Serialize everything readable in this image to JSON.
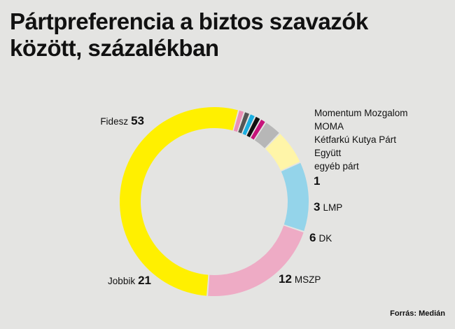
{
  "title": "Pártpreferencia a biztos szavazók között, százalékban",
  "source": "Forrás: Medián",
  "chart_data": {
    "type": "donut",
    "unit": "százalék",
    "segments": [
      {
        "name": "Fidesz",
        "value": 53,
        "color": "#fff000"
      },
      {
        "name": "Jobbik",
        "value": 21,
        "color": "#eeabc5"
      },
      {
        "name": "MSZP",
        "value": 12,
        "color": "#94d4ea"
      },
      {
        "name": "DK",
        "value": 6,
        "color": "#fff5a8"
      },
      {
        "name": "LMP",
        "value": 3,
        "color": "#b7b7b7"
      },
      {
        "name": "egyéb párt",
        "value": 1,
        "color": "#c7147b"
      },
      {
        "name": "Együtt",
        "value": 1,
        "color": "#111111"
      },
      {
        "name": "Kétfarkú Kutya Párt",
        "value": 1,
        "color": "#1aaee0"
      },
      {
        "name": "MOMA",
        "value": 1,
        "color": "#555555"
      },
      {
        "name": "Momentum Mozgalom",
        "value": 1,
        "color": "#ec8fb6"
      }
    ],
    "small_parties_label": [
      "Momentum Mozgalom",
      "MOMA",
      "Kétfarkú Kutya Párt",
      "Együtt",
      "egyéb párt"
    ],
    "small_parties_value": 1
  }
}
